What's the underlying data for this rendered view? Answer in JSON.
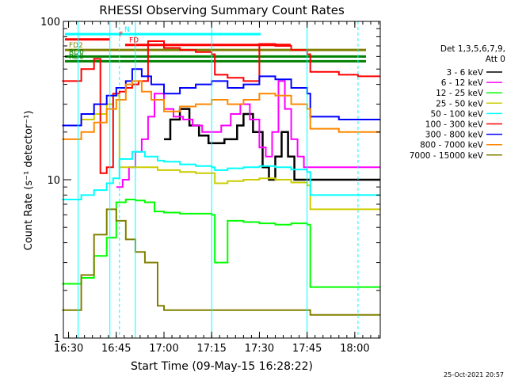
{
  "chart_data": {
    "type": "line",
    "title": "RHESSI Observing Summary Count Rates",
    "xlabel": "Start Time (09-May-15 16:28:22)",
    "ylabel": "Count Rate (s⁻¹ detector⁻¹)",
    "y_scale": "log",
    "ylim": [
      1,
      100
    ],
    "xlim": [
      "16:28:22",
      "18:08:00"
    ],
    "x_ticks": [
      "16:30",
      "16:45",
      "17:00",
      "17:15",
      "17:30",
      "17:45",
      "18:00"
    ],
    "y_ticks": [
      "1",
      "10",
      "100"
    ],
    "timestamp": "25-Oct-2021 20:57",
    "legend": {
      "placement": "right",
      "header": [
        "Det 1,3,5,6,7,9,",
        "Att 0"
      ]
    },
    "flags": [
      {
        "label": "N",
        "color": "#00ffff",
        "y": 83
      },
      {
        "label": "F",
        "color": "#ff0000",
        "y": 77
      },
      {
        "label": "FD",
        "color": "#ff0000",
        "y": 71
      },
      {
        "label": "FD2",
        "color": "#808000",
        "y": 66
      },
      {
        "label": "RD0",
        "color": "#008000",
        "y": 60
      },
      {
        "label": "RD0",
        "color": "#008000",
        "y": 56
      }
    ],
    "series": [
      {
        "name": "3 - 6 keV",
        "color": "#000000",
        "x": [
          "17:00",
          "17:02",
          "17:05",
          "17:08",
          "17:11",
          "17:14",
          "17:17",
          "17:19",
          "17:23",
          "17:25",
          "17:28",
          "17:31",
          "17:33",
          "17:35",
          "17:37",
          "17:39",
          "17:41",
          "17:44"
        ],
        "y": [
          18,
          24,
          28,
          22,
          19,
          17,
          17,
          18,
          22,
          26,
          20,
          12,
          10,
          14,
          20,
          14,
          10,
          10
        ]
      },
      {
        "name": "6 - 12 keV",
        "color": "#ff00ff",
        "x": [
          "16:45",
          "16:47",
          "16:49",
          "16:51",
          "16:53",
          "16:55",
          "16:57",
          "17:00",
          "17:03",
          "17:06",
          "17:09",
          "17:12",
          "17:15",
          "17:18",
          "17:21",
          "17:24",
          "17:27",
          "17:30",
          "17:32",
          "17:34",
          "17:36",
          "17:38",
          "17:40",
          "17:42",
          "17:44"
        ],
        "y": [
          9,
          10,
          12,
          15,
          18,
          25,
          35,
          28,
          25,
          24,
          22,
          20,
          20,
          22,
          26,
          30,
          24,
          16,
          14,
          20,
          42,
          28,
          18,
          14,
          12
        ]
      },
      {
        "name": "12 - 25 keV",
        "color": "#00ff00",
        "x": [
          "16:28",
          "16:34",
          "16:38",
          "16:42",
          "16:45",
          "16:48",
          "16:51",
          "16:54",
          "16:57",
          "17:00",
          "17:05",
          "17:10",
          "17:15",
          "17:16",
          "17:20",
          "17:25",
          "17:30",
          "17:35",
          "17:40",
          "17:45",
          "17:46",
          "17:55",
          "18:01"
        ],
        "y": [
          2.2,
          2.4,
          3.3,
          4.3,
          7.2,
          7.5,
          7.4,
          7.2,
          6.3,
          6.2,
          6.1,
          6.1,
          6.0,
          3.0,
          5.5,
          5.4,
          5.3,
          5.2,
          5.3,
          5.2,
          2.1,
          2.1,
          2.1
        ]
      },
      {
        "name": "25 - 50 keV",
        "color": "#cccc00",
        "x": [
          "16:28",
          "16:34",
          "16:38",
          "16:42",
          "16:44",
          "16:46",
          "16:50",
          "16:54",
          "16:58",
          "17:00",
          "17:05",
          "17:10",
          "17:15",
          "17:16",
          "17:20",
          "17:25",
          "17:30",
          "17:35",
          "17:40",
          "17:45",
          "17:46",
          "17:55",
          "18:01"
        ],
        "y": [
          22,
          24,
          26,
          30,
          34,
          12,
          12,
          12,
          11.5,
          11.5,
          11.2,
          11.0,
          11.0,
          9.5,
          9.8,
          10.0,
          10.2,
          10.0,
          9.6,
          9.2,
          6.5,
          6.5,
          6.5
        ]
      },
      {
        "name": "50 - 100 keV",
        "color": "#00ffff",
        "x": [
          "16:28",
          "16:34",
          "16:38",
          "16:42",
          "16:44",
          "16:46",
          "16:50",
          "16:54",
          "16:58",
          "17:00",
          "17:05",
          "17:10",
          "17:15",
          "17:16",
          "17:20",
          "17:25",
          "17:30",
          "17:35",
          "17:40",
          "17:45",
          "17:46",
          "17:55",
          "18:01"
        ],
        "y": [
          7.5,
          8.0,
          8.6,
          9.5,
          10.2,
          13.5,
          15,
          14,
          13.2,
          13,
          12.5,
          12.2,
          12.0,
          11.5,
          11.8,
          12.0,
          12.2,
          12.0,
          11.6,
          11.2,
          8.0,
          8.0,
          8.0
        ]
      },
      {
        "name": "100 - 300 keV",
        "color": "#ff0000",
        "x": [
          "16:28",
          "16:34",
          "16:38",
          "16:40",
          "16:42",
          "16:44",
          "16:46",
          "16:48",
          "16:50",
          "16:52",
          "16:55",
          "17:00",
          "17:05",
          "17:10",
          "17:15",
          "17:16",
          "17:20",
          "17:25",
          "17:30",
          "17:35",
          "17:40",
          "17:45",
          "17:46",
          "17:55",
          "18:01"
        ],
        "y": [
          42,
          50,
          58,
          11,
          12,
          35,
          36,
          38,
          40,
          42,
          75,
          68,
          66,
          64,
          62,
          46,
          44,
          42,
          72,
          70,
          66,
          62,
          48,
          46,
          45
        ]
      },
      {
        "name": "300 - 800 keV",
        "color": "#0000ff",
        "x": [
          "16:28",
          "16:34",
          "16:38",
          "16:42",
          "16:45",
          "16:48",
          "16:50",
          "16:53",
          "16:56",
          "17:00",
          "17:05",
          "17:10",
          "17:15",
          "17:20",
          "17:25",
          "17:30",
          "17:35",
          "17:40",
          "17:45",
          "17:46",
          "17:55",
          "18:01"
        ],
        "y": [
          22,
          26,
          30,
          34,
          38,
          42,
          50,
          45,
          40,
          35,
          38,
          40,
          42,
          38,
          40,
          45,
          43,
          38,
          35,
          25,
          24,
          24
        ]
      },
      {
        "name": "800 - 7000 keV",
        "color": "#ff8800",
        "x": [
          "16:28",
          "16:34",
          "16:38",
          "16:42",
          "16:45",
          "16:48",
          "16:50",
          "16:53",
          "16:56",
          "17:00",
          "17:05",
          "17:10",
          "17:15",
          "17:20",
          "17:25",
          "17:30",
          "17:35",
          "17:40",
          "17:45",
          "17:46",
          "17:55",
          "18:01"
        ],
        "y": [
          18,
          20,
          23,
          28,
          32,
          40,
          42,
          36,
          32,
          27,
          29,
          30,
          32,
          30,
          32,
          35,
          34,
          30,
          28,
          21,
          20,
          20
        ]
      },
      {
        "name": "7000 - 15000 keV",
        "color": "#808000",
        "x": [
          "16:28",
          "16:34",
          "16:38",
          "16:42",
          "16:45",
          "16:48",
          "16:51",
          "16:54",
          "16:58",
          "17:00",
          "17:05",
          "17:10",
          "17:15",
          "17:20",
          "17:25",
          "17:30",
          "17:35",
          "17:40",
          "17:45",
          "17:46",
          "17:55",
          "18:01"
        ],
        "y": [
          1.5,
          2.5,
          4.5,
          6.5,
          5.5,
          4.2,
          3.5,
          3.0,
          1.6,
          1.5,
          1.5,
          1.5,
          1.5,
          1.5,
          1.5,
          1.5,
          1.5,
          1.5,
          1.5,
          1.4,
          1.4,
          1.4
        ]
      }
    ]
  }
}
